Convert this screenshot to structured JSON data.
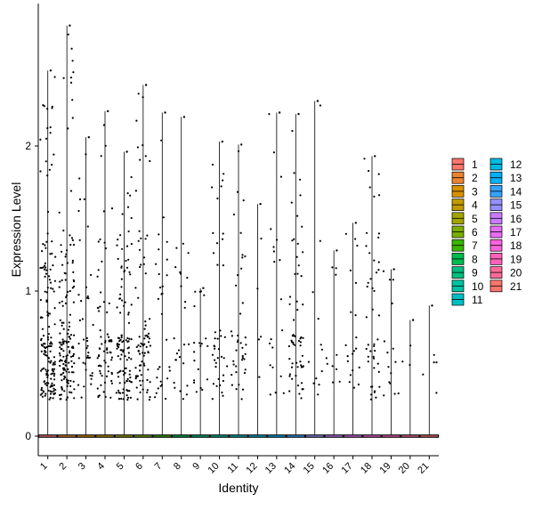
{
  "chart_data": {
    "type": "violin",
    "title": "",
    "xlabel": "Identity",
    "ylabel": "Expression Level",
    "ylim": [
      -0.12,
      2.9
    ],
    "yticks": [
      0,
      1,
      2
    ],
    "categories": [
      "1",
      "2",
      "3",
      "4",
      "5",
      "6",
      "7",
      "8",
      "9",
      "10",
      "11",
      "12",
      "13",
      "14",
      "15",
      "16",
      "17",
      "18",
      "19",
      "20",
      "21"
    ],
    "max_values": [
      2.52,
      2.83,
      2.06,
      2.24,
      1.96,
      2.42,
      2.23,
      2.2,
      1.02,
      2.03,
      2.01,
      1.6,
      2.23,
      2.22,
      2.31,
      1.28,
      1.47,
      1.93,
      1.15,
      0.8,
      0.9
    ],
    "cell_counts": [
      160,
      150,
      40,
      70,
      110,
      80,
      30,
      25,
      20,
      40,
      40,
      5,
      20,
      60,
      12,
      10,
      20,
      45,
      15,
      3,
      5
    ],
    "legend": {
      "placement": "right",
      "entries": [
        {
          "label": "1",
          "color": "#F8766D"
        },
        {
          "label": "2",
          "color": "#EA8331"
        },
        {
          "label": "3",
          "color": "#D89000"
        },
        {
          "label": "4",
          "color": "#C09B00"
        },
        {
          "label": "5",
          "color": "#A3A500"
        },
        {
          "label": "6",
          "color": "#7CAE00"
        },
        {
          "label": "7",
          "color": "#39B600"
        },
        {
          "label": "8",
          "color": "#00BB4E"
        },
        {
          "label": "9",
          "color": "#00BF7D"
        },
        {
          "label": "10",
          "color": "#00C1A3"
        },
        {
          "label": "11",
          "color": "#00BFC4"
        },
        {
          "label": "12",
          "color": "#00BAE0"
        },
        {
          "label": "13",
          "color": "#00B0F6"
        },
        {
          "label": "14",
          "color": "#35A2FF"
        },
        {
          "label": "15",
          "color": "#9590FF"
        },
        {
          "label": "16",
          "color": "#C77CFF"
        },
        {
          "label": "17",
          "color": "#E76BF3"
        },
        {
          "label": "18",
          "color": "#FA62DB"
        },
        {
          "label": "19",
          "color": "#FF62BC"
        },
        {
          "label": "20",
          "color": "#FF6A98"
        },
        {
          "label": "21",
          "color": "#F8766D"
        }
      ]
    },
    "grid": false,
    "point_color": "#000000",
    "axis_color": "#000000"
  }
}
